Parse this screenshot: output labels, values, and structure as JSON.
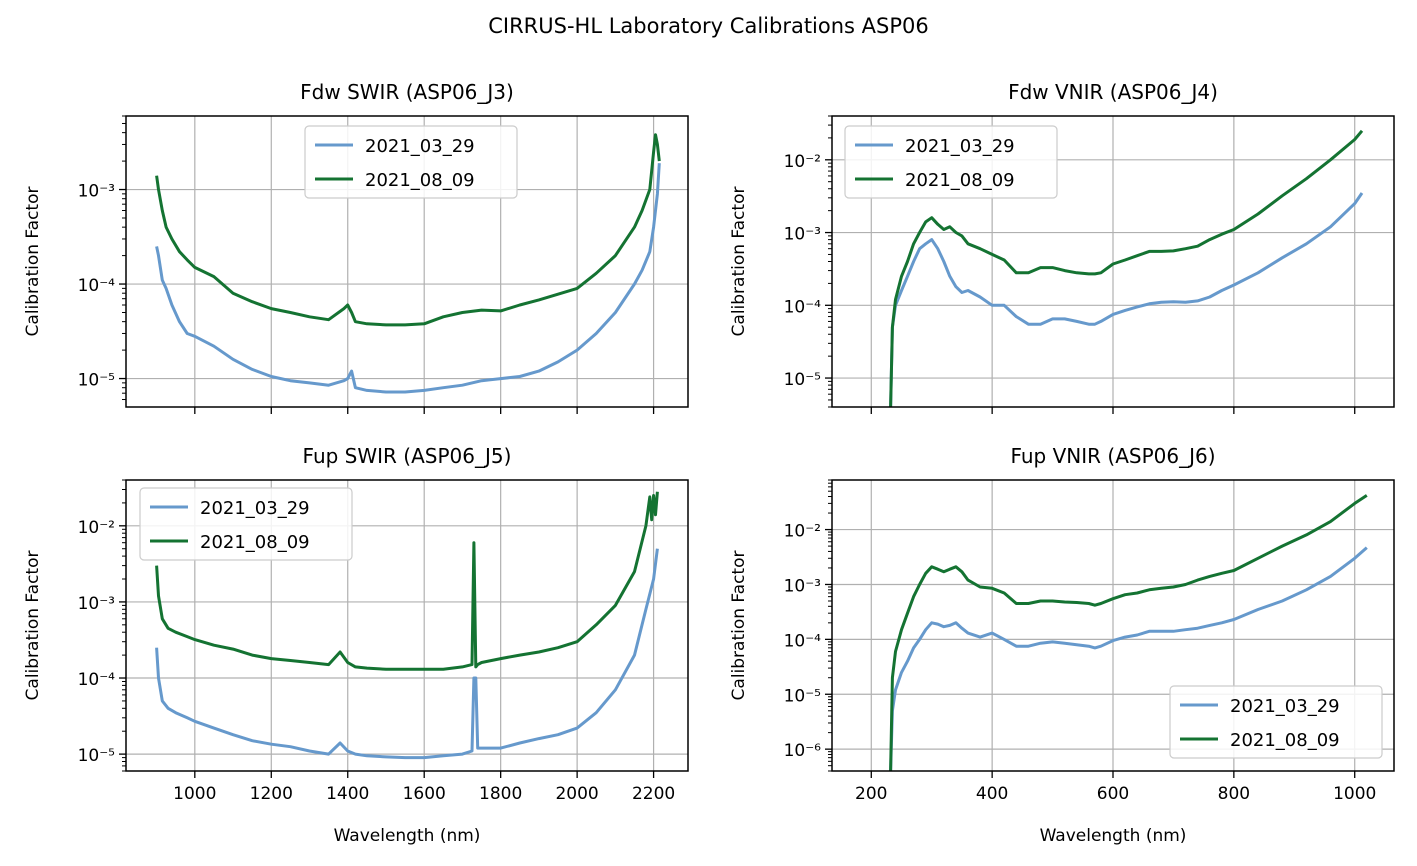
{
  "figure": {
    "suptitle": "CIRRUS-HL Laboratory Calibrations ASP06"
  },
  "colors": {
    "series_1": "#6699cc",
    "series_2": "#147332",
    "grid": "#b0b0b0",
    "axes": "#000000"
  },
  "chart_data": [
    {
      "type": "line",
      "title": "Fdw SWIR (ASP06_J3)",
      "xlabel": "",
      "ylabel": "Calibration Factor",
      "xscale": "linear",
      "yscale": "log",
      "xlim": [
        820,
        2290
      ],
      "ylim": [
        5e-06,
        0.006
      ],
      "xticks": [
        1000,
        1200,
        1400,
        1600,
        1800,
        2000,
        2200
      ],
      "xtick_labels_visible": false,
      "yticks": [
        1e-05,
        0.0001,
        0.001
      ],
      "ytick_labels": [
        "10⁻⁵",
        "10⁻⁴",
        "10⁻³"
      ],
      "grid": true,
      "legend": {
        "position": "upper center",
        "entries": [
          "2021_03_29",
          "2021_08_09"
        ]
      },
      "series": [
        {
          "name": "2021_03_29",
          "x": [
            900,
            905,
            915,
            925,
            940,
            960,
            980,
            1000,
            1050,
            1100,
            1150,
            1200,
            1250,
            1300,
            1350,
            1390,
            1400,
            1410,
            1420,
            1450,
            1500,
            1550,
            1600,
            1650,
            1700,
            1750,
            1800,
            1850,
            1900,
            1950,
            2000,
            2050,
            2100,
            2150,
            2170,
            2190,
            2200,
            2210,
            2215
          ],
          "y": [
            0.00025,
            0.0002,
            0.00011,
            9e-05,
            6e-05,
            4e-05,
            3e-05,
            2.8e-05,
            2.2e-05,
            1.6e-05,
            1.25e-05,
            1.05e-05,
            9.5e-06,
            9e-06,
            8.5e-06,
            9.5e-06,
            1e-05,
            1.2e-05,
            8e-06,
            7.5e-06,
            7.2e-06,
            7.2e-06,
            7.5e-06,
            8e-06,
            8.5e-06,
            9.5e-06,
            1e-05,
            1.05e-05,
            1.2e-05,
            1.5e-05,
            2e-05,
            3e-05,
            5e-05,
            0.0001,
            0.00014,
            0.00022,
            0.0004,
            0.0009,
            0.0019
          ]
        },
        {
          "name": "2021_08_09",
          "x": [
            900,
            905,
            915,
            925,
            940,
            960,
            980,
            1000,
            1050,
            1100,
            1150,
            1200,
            1250,
            1300,
            1350,
            1390,
            1400,
            1410,
            1420,
            1450,
            1500,
            1550,
            1600,
            1650,
            1700,
            1750,
            1800,
            1850,
            1900,
            1950,
            2000,
            2050,
            2100,
            2150,
            2170,
            2190,
            2200,
            2205,
            2210,
            2215
          ],
          "y": [
            0.0014,
            0.001,
            0.0006,
            0.0004,
            0.0003,
            0.00022,
            0.00018,
            0.00015,
            0.00012,
            8e-05,
            6.5e-05,
            5.5e-05,
            5e-05,
            4.5e-05,
            4.2e-05,
            5.5e-05,
            6e-05,
            5e-05,
            4e-05,
            3.8e-05,
            3.7e-05,
            3.7e-05,
            3.8e-05,
            4.5e-05,
            5e-05,
            5.3e-05,
            5.2e-05,
            6e-05,
            6.8e-05,
            7.8e-05,
            9e-05,
            0.00013,
            0.0002,
            0.0004,
            0.0006,
            0.001,
            0.0025,
            0.0038,
            0.003,
            0.002
          ]
        }
      ]
    },
    {
      "type": "line",
      "title": "Fdw VNIR (ASP06_J4)",
      "xlabel": "",
      "ylabel": "Calibration Factor",
      "xscale": "linear",
      "yscale": "log",
      "xlim": [
        135,
        1065
      ],
      "ylim": [
        4e-06,
        0.04
      ],
      "xticks": [
        200,
        400,
        600,
        800,
        1000
      ],
      "xtick_labels_visible": false,
      "yticks": [
        1e-05,
        0.0001,
        0.001,
        0.01
      ],
      "ytick_labels": [
        "10⁻⁵",
        "10⁻⁴",
        "10⁻³",
        "10⁻²"
      ],
      "grid": true,
      "legend": {
        "position": "upper left",
        "entries": [
          "2021_03_29",
          "2021_08_09"
        ]
      },
      "series": [
        {
          "name": "2021_03_29",
          "x": [
            232,
            235,
            240,
            250,
            260,
            270,
            280,
            290,
            300,
            310,
            320,
            330,
            340,
            350,
            360,
            380,
            400,
            420,
            440,
            460,
            480,
            500,
            520,
            540,
            560,
            570,
            580,
            600,
            620,
            640,
            660,
            680,
            700,
            720,
            740,
            760,
            780,
            800,
            840,
            880,
            920,
            960,
            1000,
            1012
          ],
          "y": [
            4e-06,
            5e-05,
            0.0001,
            0.00016,
            0.00025,
            0.0004,
            0.0006,
            0.0007,
            0.0008,
            0.0006,
            0.0004,
            0.00025,
            0.00018,
            0.00015,
            0.00016,
            0.00013,
            0.0001,
            0.0001,
            7e-05,
            5.5e-05,
            5.5e-05,
            6.5e-05,
            6.5e-05,
            6e-05,
            5.5e-05,
            5.5e-05,
            6e-05,
            7.5e-05,
            8.5e-05,
            9.5e-05,
            0.000105,
            0.00011,
            0.000112,
            0.00011,
            0.000115,
            0.00013,
            0.00016,
            0.00019,
            0.00028,
            0.00045,
            0.0007,
            0.0012,
            0.0025,
            0.0035
          ]
        },
        {
          "name": "2021_08_09",
          "x": [
            232,
            235,
            240,
            250,
            260,
            270,
            280,
            290,
            300,
            310,
            320,
            330,
            340,
            350,
            360,
            380,
            400,
            420,
            440,
            460,
            480,
            500,
            520,
            540,
            560,
            570,
            580,
            600,
            620,
            640,
            660,
            680,
            700,
            720,
            740,
            760,
            780,
            800,
            840,
            880,
            920,
            960,
            1000,
            1012
          ],
          "y": [
            4e-06,
            5e-05,
            0.00012,
            0.00025,
            0.0004,
            0.0007,
            0.001,
            0.0014,
            0.0016,
            0.0013,
            0.0011,
            0.0012,
            0.001,
            0.0009,
            0.0007,
            0.0006,
            0.0005,
            0.00042,
            0.00028,
            0.00028,
            0.00033,
            0.00033,
            0.0003,
            0.00028,
            0.00027,
            0.00027,
            0.00028,
            0.00037,
            0.00042,
            0.00048,
            0.00055,
            0.00055,
            0.00056,
            0.0006,
            0.00065,
            0.0008,
            0.00095,
            0.0011,
            0.0018,
            0.0032,
            0.0055,
            0.01,
            0.019,
            0.025
          ]
        }
      ]
    },
    {
      "type": "line",
      "title": "Fup SWIR (ASP06_J5)",
      "xlabel": "Wavelength (nm)",
      "ylabel": "Calibration Factor",
      "xscale": "linear",
      "yscale": "log",
      "xlim": [
        820,
        2290
      ],
      "ylim": [
        6e-06,
        0.04
      ],
      "xticks": [
        1000,
        1200,
        1400,
        1600,
        1800,
        2000,
        2200
      ],
      "xtick_labels": [
        "1000",
        "1200",
        "1400",
        "1600",
        "1800",
        "2000",
        "2200"
      ],
      "xtick_labels_visible": true,
      "yticks": [
        1e-05,
        0.0001,
        0.001,
        0.01
      ],
      "ytick_labels": [
        "10⁻⁵",
        "10⁻⁴",
        "10⁻³",
        "10⁻²"
      ],
      "grid": true,
      "legend": {
        "position": "upper left",
        "entries": [
          "2021_03_29",
          "2021_08_09"
        ]
      },
      "series": [
        {
          "name": "2021_03_29",
          "x": [
            900,
            905,
            915,
            930,
            950,
            980,
            1000,
            1050,
            1100,
            1150,
            1200,
            1250,
            1300,
            1350,
            1380,
            1400,
            1420,
            1450,
            1500,
            1550,
            1600,
            1650,
            1700,
            1725,
            1730,
            1735,
            1740,
            1750,
            1800,
            1850,
            1900,
            1950,
            2000,
            2050,
            2100,
            2150,
            2180,
            2200,
            2210
          ],
          "y": [
            0.00025,
            0.0001,
            5e-05,
            4e-05,
            3.5e-05,
            3e-05,
            2.7e-05,
            2.2e-05,
            1.8e-05,
            1.5e-05,
            1.35e-05,
            1.25e-05,
            1.1e-05,
            1e-05,
            1.4e-05,
            1.1e-05,
            1e-05,
            9.5e-06,
            9.2e-06,
            9e-06,
            9e-06,
            9.5e-06,
            1e-05,
            1.1e-05,
            0.0001,
            0.0001,
            1.2e-05,
            1.2e-05,
            1.2e-05,
            1.4e-05,
            1.6e-05,
            1.8e-05,
            2.2e-05,
            3.5e-05,
            7e-05,
            0.0002,
            0.0008,
            0.002,
            0.005
          ]
        },
        {
          "name": "2021_08_09",
          "x": [
            900,
            905,
            915,
            930,
            950,
            980,
            1000,
            1050,
            1100,
            1150,
            1200,
            1250,
            1300,
            1350,
            1380,
            1400,
            1420,
            1450,
            1500,
            1550,
            1600,
            1650,
            1700,
            1725,
            1730,
            1735,
            1740,
            1750,
            1800,
            1850,
            1900,
            1950,
            2000,
            2050,
            2100,
            2150,
            2180,
            2190,
            2195,
            2200,
            2205,
            2210
          ],
          "y": [
            0.003,
            0.0012,
            0.0006,
            0.00045,
            0.0004,
            0.00035,
            0.00032,
            0.00027,
            0.00024,
            0.0002,
            0.00018,
            0.00017,
            0.00016,
            0.00015,
            0.00022,
            0.00016,
            0.00014,
            0.000135,
            0.00013,
            0.00013,
            0.00013,
            0.00013,
            0.00014,
            0.00015,
            0.006,
            0.00014,
            0.00015,
            0.00016,
            0.00018,
            0.0002,
            0.00022,
            0.00025,
            0.0003,
            0.0005,
            0.0009,
            0.0025,
            0.01,
            0.024,
            0.012,
            0.025,
            0.014,
            0.028
          ]
        }
      ]
    },
    {
      "type": "line",
      "title": "Fup VNIR (ASP06_J6)",
      "xlabel": "Wavelength (nm)",
      "ylabel": "Calibration Factor",
      "xscale": "linear",
      "yscale": "log",
      "xlim": [
        135,
        1065
      ],
      "ylim": [
        4e-07,
        0.08
      ],
      "xticks": [
        200,
        400,
        600,
        800,
        1000
      ],
      "xtick_labels": [
        "200",
        "400",
        "600",
        "800",
        "1000"
      ],
      "xtick_labels_visible": true,
      "yticks": [
        1e-06,
        1e-05,
        0.0001,
        0.001,
        0.01
      ],
      "ytick_labels": [
        "10⁻⁶",
        "10⁻⁵",
        "10⁻⁴",
        "10⁻³",
        "10⁻²"
      ],
      "grid": true,
      "legend": {
        "position": "lower right",
        "entries": [
          "2021_03_29",
          "2021_08_09"
        ]
      },
      "series": [
        {
          "name": "2021_03_29",
          "x": [
            232,
            235,
            240,
            250,
            260,
            270,
            280,
            290,
            300,
            310,
            320,
            330,
            340,
            350,
            360,
            380,
            400,
            420,
            440,
            460,
            480,
            500,
            520,
            540,
            560,
            570,
            580,
            600,
            620,
            640,
            660,
            680,
            700,
            720,
            740,
            760,
            780,
            800,
            840,
            880,
            920,
            960,
            1000,
            1020
          ],
          "y": [
            4e-07,
            5e-06,
            1.2e-05,
            2.5e-05,
            4e-05,
            7e-05,
            0.0001,
            0.00015,
            0.0002,
            0.00019,
            0.00017,
            0.00018,
            0.0002,
            0.00016,
            0.00013,
            0.00011,
            0.00013,
            0.0001,
            7.5e-05,
            7.5e-05,
            8.5e-05,
            9e-05,
            8.5e-05,
            8e-05,
            7.5e-05,
            7e-05,
            7.5e-05,
            9.5e-05,
            0.00011,
            0.00012,
            0.00014,
            0.00014,
            0.00014,
            0.00015,
            0.00016,
            0.00018,
            0.0002,
            0.00023,
            0.00035,
            0.0005,
            0.0008,
            0.0014,
            0.003,
            0.0047
          ]
        },
        {
          "name": "2021_08_09",
          "x": [
            232,
            235,
            240,
            250,
            260,
            270,
            280,
            290,
            300,
            310,
            320,
            330,
            340,
            350,
            360,
            380,
            400,
            420,
            440,
            460,
            480,
            500,
            520,
            540,
            560,
            570,
            580,
            600,
            620,
            640,
            660,
            680,
            700,
            720,
            740,
            760,
            780,
            800,
            840,
            880,
            920,
            960,
            1000,
            1020
          ],
          "y": [
            4e-07,
            2e-05,
            6e-05,
            0.00015,
            0.0003,
            0.0006,
            0.001,
            0.0016,
            0.0021,
            0.0019,
            0.0017,
            0.0019,
            0.0021,
            0.0017,
            0.0012,
            0.0009,
            0.00085,
            0.0007,
            0.00045,
            0.00045,
            0.0005,
            0.0005,
            0.00048,
            0.00047,
            0.00045,
            0.00042,
            0.00045,
            0.00055,
            0.00065,
            0.0007,
            0.0008,
            0.00085,
            0.0009,
            0.001,
            0.0012,
            0.0014,
            0.0016,
            0.0018,
            0.003,
            0.005,
            0.008,
            0.014,
            0.03,
            0.042
          ]
        }
      ]
    }
  ]
}
